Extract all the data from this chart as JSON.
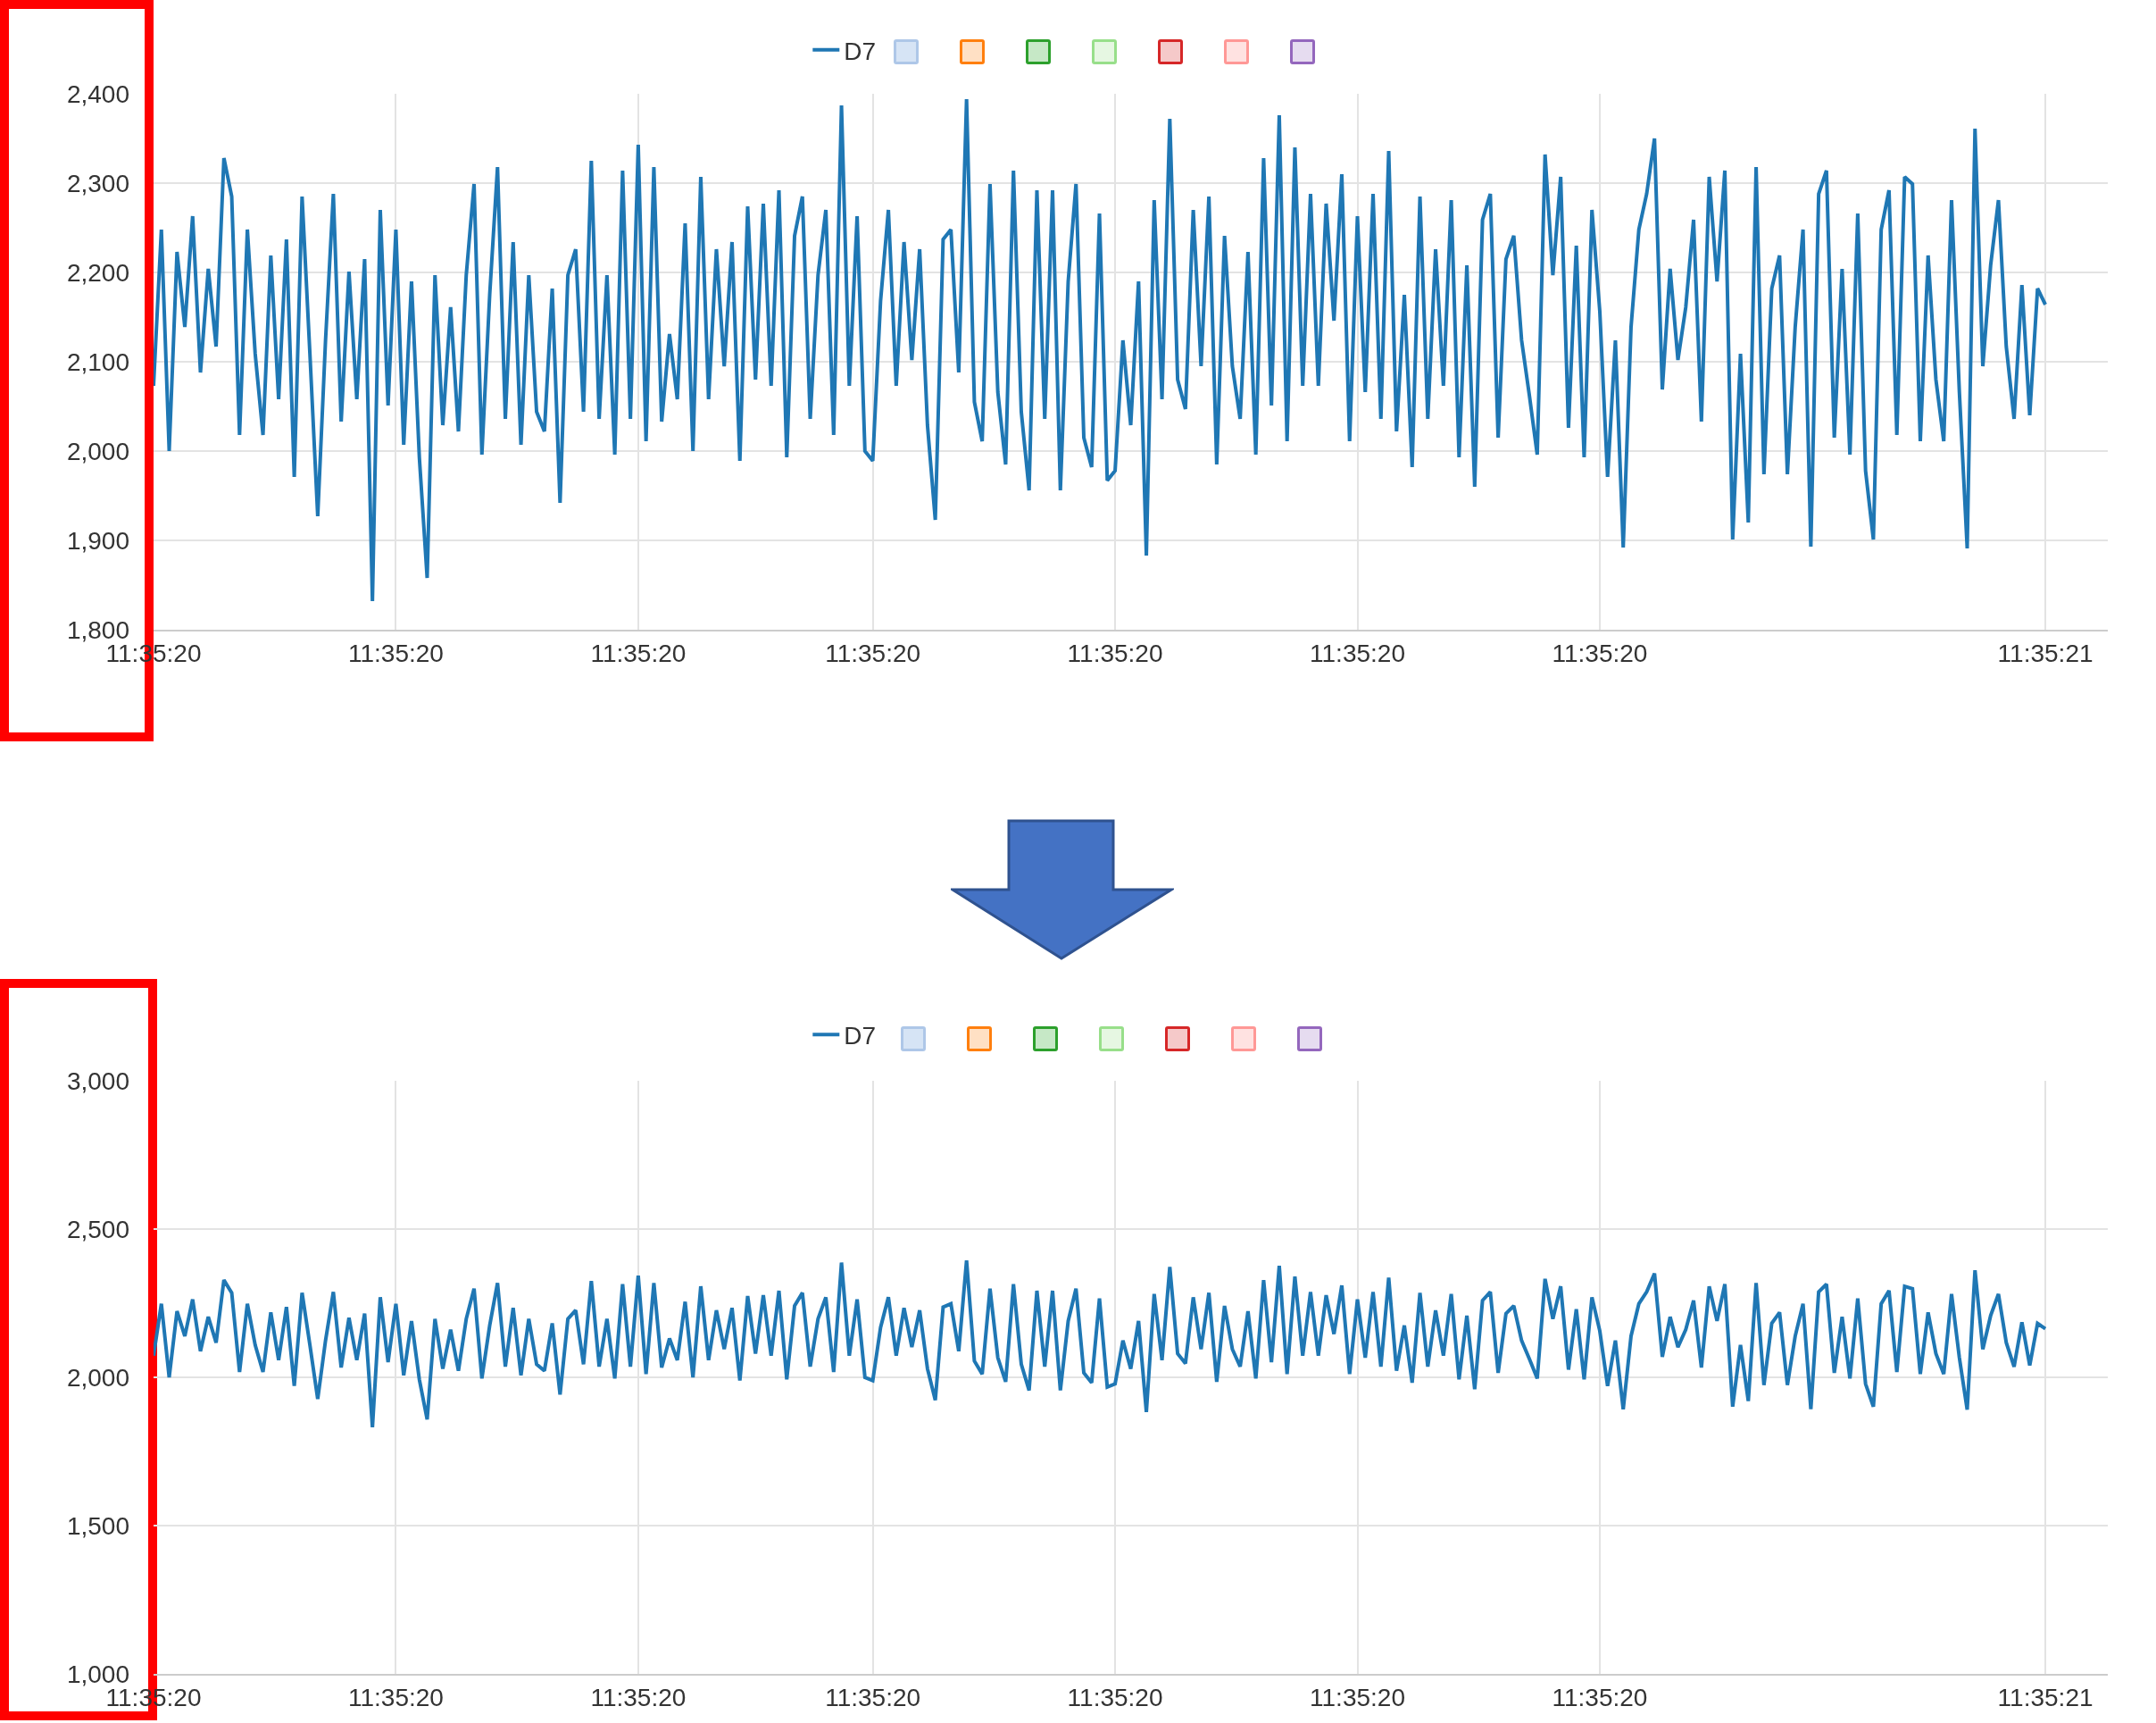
{
  "chart_data": [
    {
      "type": "line",
      "categories": [
        "11:35:20",
        null,
        null,
        null,
        null,
        null,
        null,
        null,
        null,
        null,
        null,
        null,
        null,
        null,
        null,
        null,
        null,
        null,
        null,
        null,
        null,
        null,
        null,
        null,
        null,
        null,
        null,
        null,
        null,
        null,
        null,
        "11:35:20",
        null,
        null,
        null,
        null,
        null,
        null,
        null,
        null,
        null,
        null,
        null,
        null,
        null,
        null,
        null,
        null,
        null,
        null,
        null,
        null,
        null,
        null,
        null,
        null,
        null,
        null,
        null,
        null,
        null,
        null,
        "11:35:20",
        null,
        null,
        null,
        null,
        null,
        null,
        null,
        null,
        null,
        null,
        null,
        null,
        null,
        null,
        null,
        null,
        null,
        null,
        null,
        null,
        null,
        null,
        null,
        null,
        null,
        null,
        null,
        null,
        null,
        "11:35:20",
        null,
        null,
        null,
        null,
        null,
        null,
        null,
        null,
        null,
        null,
        null,
        null,
        null,
        null,
        null,
        null,
        null,
        null,
        null,
        null,
        null,
        null,
        null,
        null,
        null,
        null,
        null,
        null,
        null,
        null,
        "11:35:20",
        null,
        null,
        null,
        null,
        null,
        null,
        null,
        null,
        null,
        null,
        null,
        null,
        null,
        null,
        null,
        null,
        null,
        null,
        null,
        null,
        null,
        null,
        null,
        null,
        null,
        null,
        null,
        null,
        null,
        null,
        "11:35:20",
        null,
        null,
        null,
        null,
        null,
        null,
        null,
        null,
        null,
        null,
        null,
        null,
        null,
        null,
        null,
        null,
        null,
        null,
        null,
        null,
        null,
        null,
        null,
        null,
        null,
        null,
        null,
        null,
        null,
        null,
        "11:35:20",
        null,
        null,
        null,
        null,
        null,
        null,
        null,
        null,
        null,
        null,
        null,
        null,
        null,
        null,
        null,
        null,
        null,
        null,
        null,
        null,
        null,
        null,
        null,
        null,
        null,
        null,
        null,
        null,
        null,
        null,
        null,
        null,
        null,
        null,
        null,
        null,
        null,
        null,
        null,
        null,
        null,
        null,
        null,
        null,
        null,
        null,
        null,
        null,
        null,
        null,
        null,
        null,
        null,
        null,
        null,
        null,
        "11:35:21"
      ],
      "series": [
        {
          "name": "D7",
          "color": "#1f77b4",
          "values": [
            2073,
            2248,
            2000,
            2223,
            2139,
            2263,
            2088,
            2204,
            2117,
            2328,
            2285,
            2018,
            2248,
            2109,
            2018,
            2219,
            2058,
            2237,
            1971,
            2285,
            2109,
            1927,
            2124,
            2288,
            2033,
            2201,
            2058,
            2215,
            1832,
            2270,
            2051,
            2248,
            2007,
            2190,
            1993,
            1858,
            2197,
            2029,
            2161,
            2022,
            2197,
            2299,
            1996,
            2175,
            2318,
            2036,
            2234,
            2007,
            2197,
            2044,
            2022,
            2182,
            1942,
            2197,
            2226,
            2044,
            2325,
            2036,
            2197,
            1996,
            2314,
            2036,
            2343,
            2011,
            2318,
            2033,
            2131,
            2058,
            2255,
            2000,
            2307,
            2058,
            2226,
            2095,
            2234,
            1989,
            2274,
            2080,
            2277,
            2073,
            2292,
            1993,
            2241,
            2285,
            2036,
            2197,
            2270,
            2018,
            2387,
            2073,
            2263,
            2000,
            1989,
            2168,
            2270,
            2073,
            2234,
            2102,
            2226,
            2029,
            1923,
            2237,
            2248,
            2088,
            2394,
            2055,
            2011,
            2299,
            2066,
            1985,
            2314,
            2044,
            1956,
            2292,
            2036,
            2292,
            1956,
            2190,
            2299,
            2015,
            1982,
            2266,
            1967,
            1978,
            2124,
            2029,
            2190,
            1883,
            2281,
            2058,
            2372,
            2080,
            2047,
            2270,
            2095,
            2285,
            1985,
            2241,
            2095,
            2036,
            2223,
            1996,
            2328,
            2051,
            2376,
            2011,
            2340,
            2073,
            2288,
            2073,
            2277,
            2146,
            2310,
            2011,
            2263,
            2066,
            2288,
            2036,
            2336,
            2022,
            2175,
            1982,
            2285,
            2036,
            2226,
            2073,
            2281,
            1993,
            2208,
            1960,
            2259,
            2288,
            2015,
            2215,
            2241,
            2124,
            2062,
            1996,
            2332,
            2197,
            2307,
            2026,
            2230,
            1993,
            2270,
            2157,
            1971,
            2124,
            1892,
            2139,
            2248,
            2288,
            2350,
            2069,
            2204,
            2102,
            2161,
            2259,
            2033,
            2307,
            2190,
            2314,
            1901,
            2109,
            1920,
            2318,
            1974,
            2182,
            2219,
            1974,
            2139,
            2248,
            1893,
            2288,
            2314,
            2015,
            2204,
            1996,
            2266,
            1978,
            1901,
            2248,
            2292,
            2018,
            2307,
            2299,
            2011,
            2219,
            2080,
            2011,
            2281,
            2066,
            1891,
            2361,
            2095,
            2208,
            2281,
            2117,
            2036,
            2186,
            2040,
            2182,
            2164
          ]
        }
      ],
      "ylim": [
        1800,
        2400
      ],
      "yticks": [
        {
          "value": 1800,
          "label": "1,800"
        },
        {
          "value": 1900,
          "label": "1,900"
        },
        {
          "value": 2000,
          "label": "2,000"
        },
        {
          "value": 2100,
          "label": "2,100"
        },
        {
          "value": 2200,
          "label": "2,200"
        },
        {
          "value": 2300,
          "label": "2,300"
        },
        {
          "value": 2400,
          "label": "2,400"
        }
      ],
      "grid": true,
      "legend": "top"
    },
    {
      "type": "line",
      "categories": [
        "11:35:20",
        null,
        null,
        null,
        null,
        null,
        null,
        null,
        null,
        null,
        null,
        null,
        null,
        null,
        null,
        null,
        null,
        null,
        null,
        null,
        null,
        null,
        null,
        null,
        null,
        null,
        null,
        null,
        null,
        null,
        null,
        "11:35:20",
        null,
        null,
        null,
        null,
        null,
        null,
        null,
        null,
        null,
        null,
        null,
        null,
        null,
        null,
        null,
        null,
        null,
        null,
        null,
        null,
        null,
        null,
        null,
        null,
        null,
        null,
        null,
        null,
        null,
        null,
        "11:35:20",
        null,
        null,
        null,
        null,
        null,
        null,
        null,
        null,
        null,
        null,
        null,
        null,
        null,
        null,
        null,
        null,
        null,
        null,
        null,
        null,
        null,
        null,
        null,
        null,
        null,
        null,
        null,
        null,
        null,
        "11:35:20",
        null,
        null,
        null,
        null,
        null,
        null,
        null,
        null,
        null,
        null,
        null,
        null,
        null,
        null,
        null,
        null,
        null,
        null,
        null,
        null,
        null,
        null,
        null,
        null,
        null,
        null,
        null,
        null,
        null,
        null,
        "11:35:20",
        null,
        null,
        null,
        null,
        null,
        null,
        null,
        null,
        null,
        null,
        null,
        null,
        null,
        null,
        null,
        null,
        null,
        null,
        null,
        null,
        null,
        null,
        null,
        null,
        null,
        null,
        null,
        null,
        null,
        null,
        "11:35:20",
        null,
        null,
        null,
        null,
        null,
        null,
        null,
        null,
        null,
        null,
        null,
        null,
        null,
        null,
        null,
        null,
        null,
        null,
        null,
        null,
        null,
        null,
        null,
        null,
        null,
        null,
        null,
        null,
        null,
        null,
        "11:35:20",
        null,
        null,
        null,
        null,
        null,
        null,
        null,
        null,
        null,
        null,
        null,
        null,
        null,
        null,
        null,
        null,
        null,
        null,
        null,
        null,
        null,
        null,
        null,
        null,
        null,
        null,
        null,
        null,
        null,
        null,
        null,
        null,
        null,
        null,
        null,
        null,
        null,
        null,
        null,
        null,
        null,
        null,
        null,
        null,
        null,
        null,
        null,
        null,
        null,
        null,
        null,
        null,
        null,
        null,
        null,
        null,
        "11:35:21"
      ],
      "series": [
        {
          "name": "D7",
          "color": "#1f77b4",
          "values": [
            2073,
            2248,
            2000,
            2223,
            2139,
            2263,
            2088,
            2204,
            2117,
            2328,
            2285,
            2018,
            2248,
            2109,
            2018,
            2219,
            2058,
            2237,
            1971,
            2285,
            2109,
            1927,
            2124,
            2288,
            2033,
            2201,
            2058,
            2215,
            1832,
            2270,
            2051,
            2248,
            2007,
            2190,
            1993,
            1858,
            2197,
            2029,
            2161,
            2022,
            2197,
            2299,
            1996,
            2175,
            2318,
            2036,
            2234,
            2007,
            2197,
            2044,
            2022,
            2182,
            1942,
            2197,
            2226,
            2044,
            2325,
            2036,
            2197,
            1996,
            2314,
            2036,
            2343,
            2011,
            2318,
            2033,
            2131,
            2058,
            2255,
            2000,
            2307,
            2058,
            2226,
            2095,
            2234,
            1989,
            2274,
            2080,
            2277,
            2073,
            2292,
            1993,
            2241,
            2285,
            2036,
            2197,
            2270,
            2018,
            2387,
            2073,
            2263,
            2000,
            1989,
            2168,
            2270,
            2073,
            2234,
            2102,
            2226,
            2029,
            1923,
            2237,
            2248,
            2088,
            2394,
            2055,
            2011,
            2299,
            2066,
            1985,
            2314,
            2044,
            1956,
            2292,
            2036,
            2292,
            1956,
            2190,
            2299,
            2015,
            1982,
            2266,
            1967,
            1978,
            2124,
            2029,
            2190,
            1883,
            2281,
            2058,
            2372,
            2080,
            2047,
            2270,
            2095,
            2285,
            1985,
            2241,
            2095,
            2036,
            2223,
            1996,
            2328,
            2051,
            2376,
            2011,
            2340,
            2073,
            2288,
            2073,
            2277,
            2146,
            2310,
            2011,
            2263,
            2066,
            2288,
            2036,
            2336,
            2022,
            2175,
            1982,
            2285,
            2036,
            2226,
            2073,
            2281,
            1993,
            2208,
            1960,
            2259,
            2288,
            2015,
            2215,
            2241,
            2124,
            2062,
            1996,
            2332,
            2197,
            2307,
            2026,
            2230,
            1993,
            2270,
            2157,
            1971,
            2124,
            1892,
            2139,
            2248,
            2288,
            2350,
            2069,
            2204,
            2102,
            2161,
            2259,
            2033,
            2307,
            2190,
            2314,
            1901,
            2109,
            1920,
            2318,
            1974,
            2182,
            2219,
            1974,
            2139,
            2248,
            1893,
            2288,
            2314,
            2015,
            2204,
            1996,
            2266,
            1978,
            1901,
            2248,
            2292,
            2018,
            2307,
            2299,
            2011,
            2219,
            2080,
            2011,
            2281,
            2066,
            1891,
            2361,
            2095,
            2208,
            2281,
            2117,
            2036,
            2186,
            2040,
            2182,
            2164
          ]
        }
      ],
      "ylim": [
        1000,
        3000
      ],
      "yticks": [
        {
          "value": 1000,
          "label": "1,000"
        },
        {
          "value": 1500,
          "label": "1,500"
        },
        {
          "value": 2000,
          "label": "2,000"
        },
        {
          "value": 2500,
          "label": "2,500"
        },
        {
          "value": 3000,
          "label": "3,000"
        }
      ],
      "grid": true,
      "legend": "top"
    }
  ]
}
